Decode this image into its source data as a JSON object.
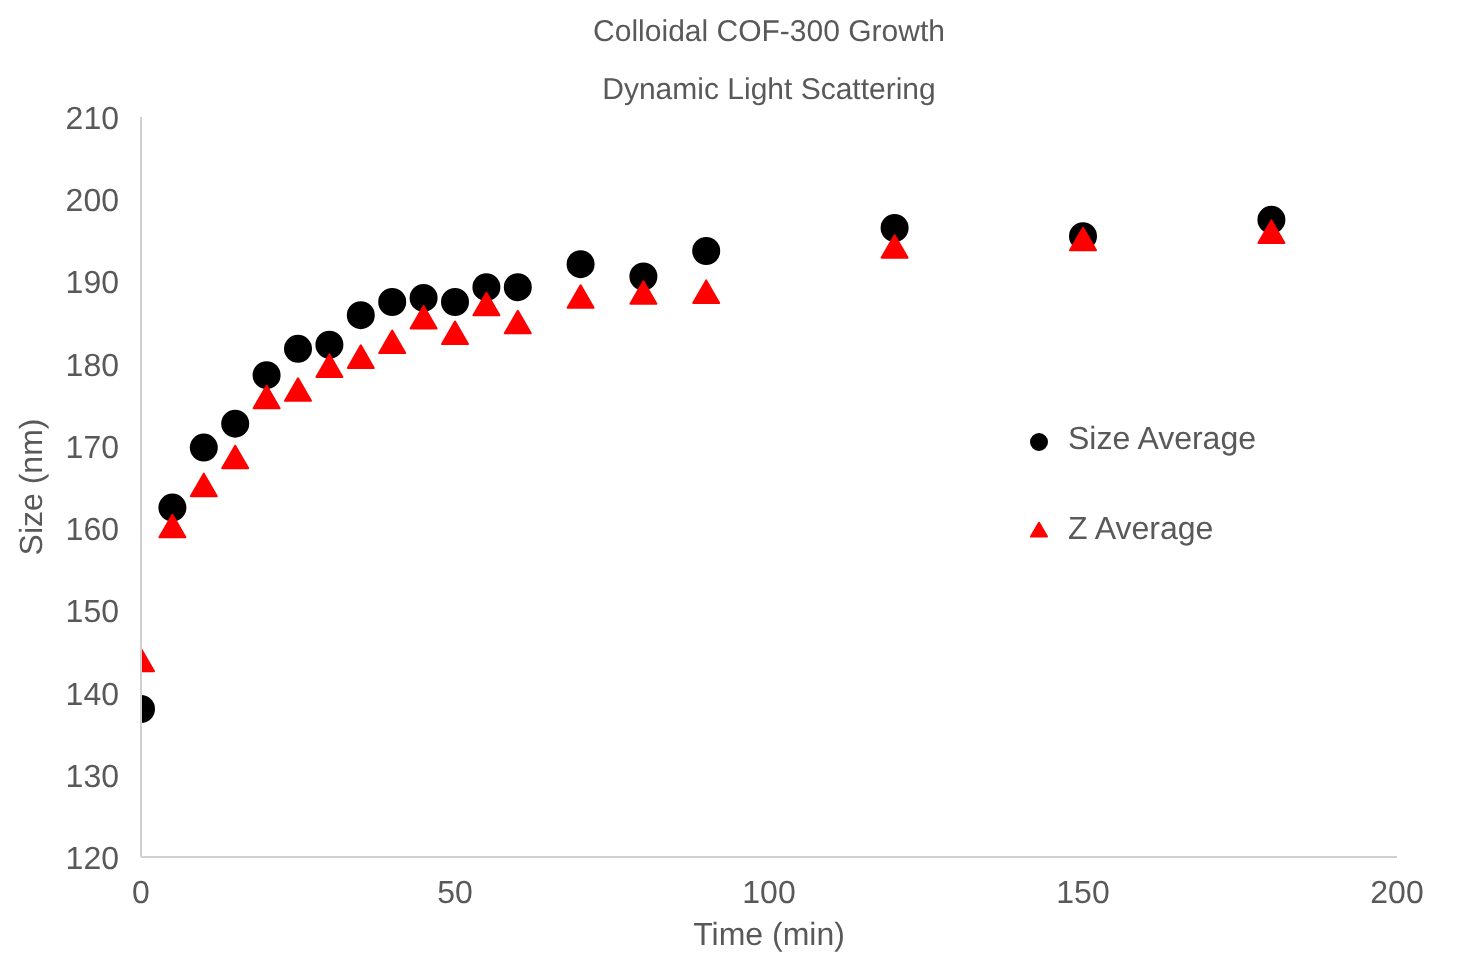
{
  "chart_data": {
    "type": "scatter",
    "title": "Colloidal COF-300 Growth",
    "subtitle": "Dynamic Light Scattering",
    "xlabel": "Time (min)",
    "ylabel": "Size (nm)",
    "x": [
      0,
      5,
      10,
      15,
      20,
      25,
      30,
      35,
      40,
      45,
      50,
      55,
      60,
      70,
      80,
      90,
      120,
      150,
      180
    ],
    "series": [
      {
        "name": "Size Average",
        "color": "#000000",
        "marker": "circle",
        "values": [
          138,
          162.5,
          169.8,
          172.7,
          178.6,
          181.8,
          182.3,
          185.9,
          187.5,
          188,
          187.5,
          189.3,
          189.3,
          192.1,
          190.6,
          193.7,
          196.5,
          195.5,
          197.5
        ]
      },
      {
        "name": "Z Average",
        "color": "#ff0000",
        "marker": "triangle",
        "values": [
          143.5,
          159.8,
          164.8,
          168.2,
          175.5,
          176.4,
          179.3,
          180.4,
          182.2,
          185.2,
          183.3,
          186.8,
          184.6,
          187.7,
          188.2,
          188.3,
          193.8,
          194.7,
          195.6
        ]
      }
    ],
    "xlim": [
      0,
      200
    ],
    "xticks": [
      0,
      50,
      100,
      150,
      200
    ],
    "ylim": [
      120,
      210
    ],
    "yticks": [
      120,
      130,
      140,
      150,
      160,
      170,
      180,
      190,
      200,
      210
    ],
    "grid": false,
    "legend": "right"
  }
}
